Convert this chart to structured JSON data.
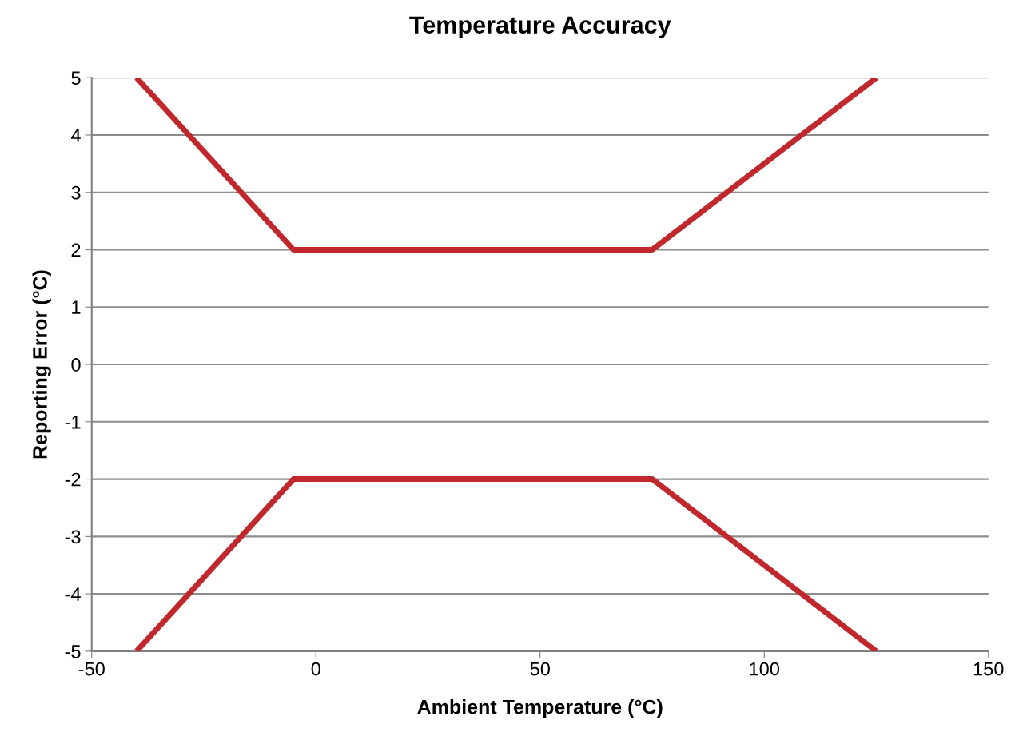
{
  "chart_data": {
    "type": "line",
    "title": "Temperature Accuracy",
    "xlabel": "Ambient Temperature (°C)",
    "ylabel": "Reporting Error (°C)",
    "series": [
      {
        "color": "#c0282d",
        "x": [
          -40,
          -5,
          75,
          125
        ],
        "values": [
          5,
          2,
          2,
          5
        ]
      },
      {
        "color": "#c0282d",
        "x": [
          -40,
          -5,
          75,
          125
        ],
        "values": [
          -5,
          -2,
          -2,
          -5
        ]
      }
    ],
    "xlim": [
      -50,
      150
    ],
    "xticks": [
      -50,
      0,
      50,
      100,
      150
    ],
    "ylim": [
      -5,
      5
    ],
    "yticks": [
      -5,
      -4,
      -3,
      -2,
      -1,
      0,
      1,
      2,
      3,
      4,
      5
    ],
    "grid": "y",
    "line_style": "solid",
    "marker": "none"
  }
}
